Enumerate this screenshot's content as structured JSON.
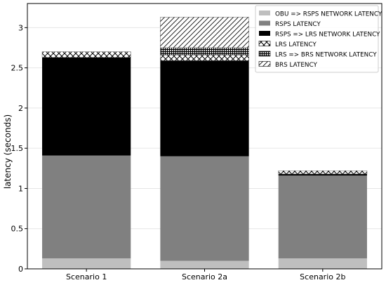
{
  "chart_data": {
    "type": "bar",
    "stacked": true,
    "title": "",
    "xlabel": "",
    "ylabel": "latency (seconds)",
    "ylim": [
      0,
      3.3
    ],
    "yticks": [
      0,
      0.5,
      1,
      1.5,
      2,
      2.5,
      3
    ],
    "ytick_labels": [
      "0",
      "0.5",
      "1",
      "1.5",
      "2",
      "2.5",
      "3"
    ],
    "grid": true,
    "legend_position": "top-right",
    "categories": [
      "Scenario 1",
      "Scenario 2a",
      "Scenario 2b"
    ],
    "series": [
      {
        "name": "OBU => RSPS NETWORK LATENCY",
        "values": [
          0.13,
          0.1,
          0.13
        ],
        "fill": "solid",
        "color": "#bfbfbf"
      },
      {
        "name": "RSPS LATENCY",
        "values": [
          1.28,
          1.3,
          1.03
        ],
        "fill": "solid",
        "color": "#808080"
      },
      {
        "name": "RSPS => LRS NETWORK LATENCY",
        "values": [
          1.22,
          1.19,
          0.02
        ],
        "fill": "solid",
        "color": "#000000"
      },
      {
        "name": "LRS LATENCY",
        "values": [
          0.07,
          0.07,
          0.04
        ],
        "fill": "crosshatch",
        "color": "#000000"
      },
      {
        "name": "LRS => BRS NETWORK LATENCY",
        "values": [
          0.0,
          0.09,
          0.0
        ],
        "fill": "dense-grid",
        "color": "#000000"
      },
      {
        "name": "BRS LATENCY",
        "values": [
          0.0,
          0.38,
          0.0
        ],
        "fill": "diagonal",
        "color": "#000000"
      }
    ]
  }
}
